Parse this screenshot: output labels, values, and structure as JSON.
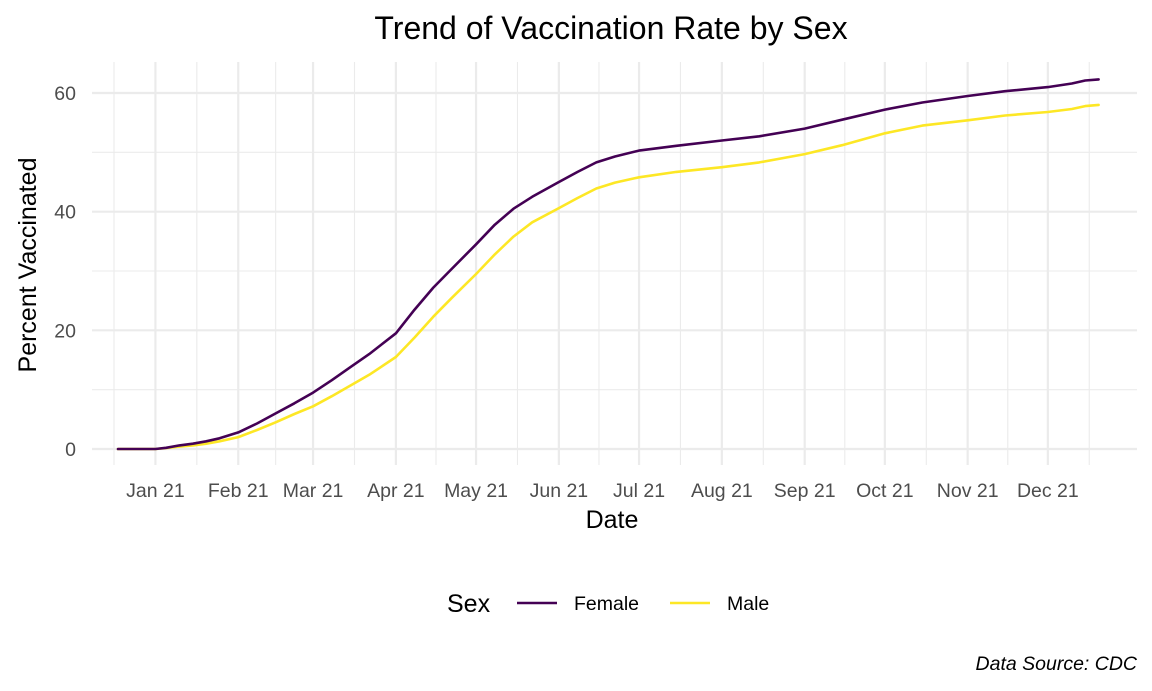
{
  "chart_data": {
    "type": "line",
    "title": "Trend of Vaccination Rate by Sex",
    "xlabel": "Date",
    "ylabel": "Percent Vaccinated",
    "x_type": "date",
    "x_range": [
      "2020-12-15",
      "2021-12-31"
    ],
    "ylim": [
      0,
      64
    ],
    "y_ticks": [
      0,
      20,
      40,
      60
    ],
    "x_ticks": [
      {
        "date": "2021-01-01",
        "label": "Jan 21"
      },
      {
        "date": "2021-02-01",
        "label": "Feb 21"
      },
      {
        "date": "2021-03-01",
        "label": "Mar 21"
      },
      {
        "date": "2021-04-01",
        "label": "Apr 21"
      },
      {
        "date": "2021-05-01",
        "label": "May 21"
      },
      {
        "date": "2021-06-01",
        "label": "Jun 21"
      },
      {
        "date": "2021-07-01",
        "label": "Jul 21"
      },
      {
        "date": "2021-08-01",
        "label": "Aug 21"
      },
      {
        "date": "2021-09-01",
        "label": "Sep 21"
      },
      {
        "date": "2021-10-01",
        "label": "Oct 21"
      },
      {
        "date": "2021-11-01",
        "label": "Nov 21"
      },
      {
        "date": "2021-12-01",
        "label": "Dec 21"
      }
    ],
    "grid": true,
    "legend": {
      "title": "Sex",
      "position": "bottom"
    },
    "caption": "Data Source: CDC",
    "series": [
      {
        "name": "Female",
        "color": "#440154",
        "points": [
          [
            "2020-12-18",
            0.0
          ],
          [
            "2021-01-01",
            0.0
          ],
          [
            "2021-01-05",
            0.2
          ],
          [
            "2021-01-10",
            0.6
          ],
          [
            "2021-01-15",
            0.9
          ],
          [
            "2021-01-20",
            1.3
          ],
          [
            "2021-01-25",
            1.8
          ],
          [
            "2021-02-01",
            2.8
          ],
          [
            "2021-02-08",
            4.3
          ],
          [
            "2021-02-15",
            6.0
          ],
          [
            "2021-02-22",
            7.7
          ],
          [
            "2021-03-01",
            9.5
          ],
          [
            "2021-03-08",
            11.6
          ],
          [
            "2021-03-15",
            13.8
          ],
          [
            "2021-03-22",
            16.0
          ],
          [
            "2021-04-01",
            19.5
          ],
          [
            "2021-04-08",
            23.5
          ],
          [
            "2021-04-15",
            27.2
          ],
          [
            "2021-04-22",
            30.4
          ],
          [
            "2021-05-01",
            34.5
          ],
          [
            "2021-05-08",
            37.8
          ],
          [
            "2021-05-15",
            40.5
          ],
          [
            "2021-05-22",
            42.5
          ],
          [
            "2021-06-01",
            45.0
          ],
          [
            "2021-06-08",
            46.7
          ],
          [
            "2021-06-15",
            48.3
          ],
          [
            "2021-06-22",
            49.3
          ],
          [
            "2021-07-01",
            50.3
          ],
          [
            "2021-07-15",
            51.1
          ],
          [
            "2021-08-01",
            52.0
          ],
          [
            "2021-08-15",
            52.7
          ],
          [
            "2021-09-01",
            54.0
          ],
          [
            "2021-09-15",
            55.5
          ],
          [
            "2021-10-01",
            57.2
          ],
          [
            "2021-10-15",
            58.4
          ],
          [
            "2021-11-01",
            59.5
          ],
          [
            "2021-11-15",
            60.3
          ],
          [
            "2021-12-01",
            61.0
          ],
          [
            "2021-12-10",
            61.6
          ],
          [
            "2021-12-15",
            62.1
          ],
          [
            "2021-12-20",
            62.3
          ]
        ]
      },
      {
        "name": "Male",
        "color": "#FDE725",
        "points": [
          [
            "2020-12-18",
            0.0
          ],
          [
            "2021-01-01",
            0.0
          ],
          [
            "2021-01-05",
            0.15
          ],
          [
            "2021-01-10",
            0.4
          ],
          [
            "2021-01-15",
            0.6
          ],
          [
            "2021-01-20",
            0.9
          ],
          [
            "2021-01-25",
            1.3
          ],
          [
            "2021-02-01",
            2.0
          ],
          [
            "2021-02-08",
            3.2
          ],
          [
            "2021-02-15",
            4.5
          ],
          [
            "2021-02-22",
            5.9
          ],
          [
            "2021-03-01",
            7.2
          ],
          [
            "2021-03-08",
            8.9
          ],
          [
            "2021-03-15",
            10.7
          ],
          [
            "2021-03-22",
            12.5
          ],
          [
            "2021-04-01",
            15.5
          ],
          [
            "2021-04-08",
            18.8
          ],
          [
            "2021-04-15",
            22.3
          ],
          [
            "2021-04-22",
            25.5
          ],
          [
            "2021-05-01",
            29.5
          ],
          [
            "2021-05-08",
            32.8
          ],
          [
            "2021-05-15",
            35.8
          ],
          [
            "2021-05-22",
            38.2
          ],
          [
            "2021-06-01",
            40.6
          ],
          [
            "2021-06-08",
            42.3
          ],
          [
            "2021-06-15",
            43.9
          ],
          [
            "2021-06-22",
            44.9
          ],
          [
            "2021-07-01",
            45.8
          ],
          [
            "2021-07-15",
            46.7
          ],
          [
            "2021-08-01",
            47.5
          ],
          [
            "2021-08-15",
            48.3
          ],
          [
            "2021-09-01",
            49.7
          ],
          [
            "2021-09-15",
            51.2
          ],
          [
            "2021-10-01",
            53.2
          ],
          [
            "2021-10-15",
            54.5
          ],
          [
            "2021-11-01",
            55.4
          ],
          [
            "2021-11-15",
            56.2
          ],
          [
            "2021-12-01",
            56.8
          ],
          [
            "2021-12-10",
            57.3
          ],
          [
            "2021-12-15",
            57.8
          ],
          [
            "2021-12-20",
            58.0
          ]
        ]
      }
    ]
  }
}
